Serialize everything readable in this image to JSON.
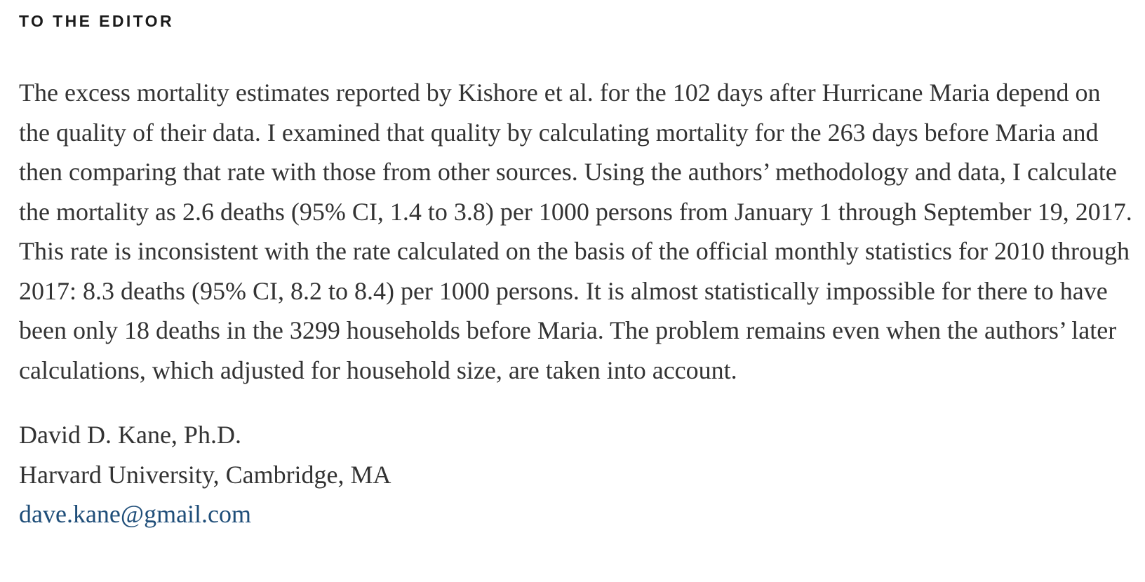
{
  "header": {
    "section_label": "TO THE EDITOR"
  },
  "letter": {
    "body": "The excess mortality estimates reported by Kishore et al. for the 102 days after Hurricane Maria depend on the quality of their data. I examined that quality by calculating mortality for the 263 days before Maria and then comparing that rate with those from other sources. Using the authors’ methodology and data, I calculate the mortality as 2.6 deaths (95% CI, 1.4 to 3.8) per 1000 persons from January 1 through September 19, 2017. This rate is inconsistent with the rate calculated on the basis of the official monthly statistics for 2010 through 2017: 8.3 deaths (95% CI, 8.2 to 8.4) per 1000 persons. It is almost statistically impossible for there to have been only 18 deaths in the 3299 households before Maria. The problem remains even when the authors’ later calculations, which adjusted for household size, are taken into account."
  },
  "signature": {
    "author_name": "David D. Kane, Ph.D.",
    "affiliation": "Harvard University, Cambridge, MA",
    "email": "dave.kane@gmail.com"
  },
  "colors": {
    "link": "#1f4e79",
    "body_text": "#333333",
    "label_text": "#1a1a1a"
  }
}
